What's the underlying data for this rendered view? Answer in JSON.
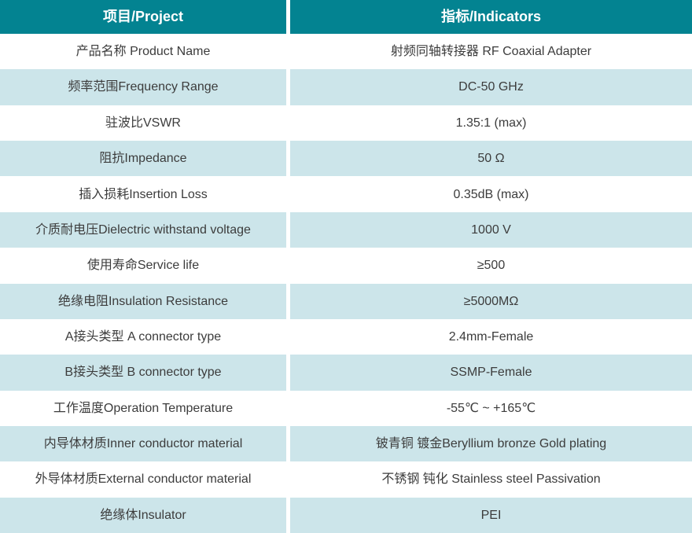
{
  "columns": {
    "project": "项目/Project",
    "indicators": "指标/Indicators"
  },
  "rows": [
    {
      "project": "产品名称 Product Name",
      "indicator": "射频同轴转接器  RF Coaxial Adapter"
    },
    {
      "project": "频率范围Frequency Range",
      "indicator": "DC-50 GHz"
    },
    {
      "project": "驻波比VSWR",
      "indicator": "1.35:1 (max)"
    },
    {
      "project": "阻抗Impedance",
      "indicator": "50 Ω"
    },
    {
      "project": "插入损耗Insertion Loss",
      "indicator": "0.35dB (max)"
    },
    {
      "project": "介质耐电压Dielectric withstand voltage",
      "indicator": "1000 V"
    },
    {
      "project": "使用寿命Service life",
      "indicator": "≥500"
    },
    {
      "project": "绝缘电阻Insulation Resistance",
      "indicator": "≥5000MΩ"
    },
    {
      "project": "A接头类型 A connector type",
      "indicator": "2.4mm-Female"
    },
    {
      "project": "B接头类型 B connector type",
      "indicator": "SSMP-Female"
    },
    {
      "project": "工作温度Operation Temperature",
      "indicator": "-55℃ ~ +165℃"
    },
    {
      "project": "内导体材质Inner conductor material",
      "indicator": "铍青铜 镀金Beryllium bronze Gold plating"
    },
    {
      "project": "外导体材质External conductor material",
      "indicator": "不锈钢 钝化 Stainless steel Passivation"
    },
    {
      "project": "绝缘体Insulator",
      "indicator": "PEI"
    }
  ],
  "colors": {
    "header_bg": "#038391",
    "header_text": "#ffffff",
    "row_alt_bg": "#cce5ea",
    "row_bg": "#ffffff",
    "body_text": "#3c3c3c",
    "divider": "#ffffff"
  }
}
